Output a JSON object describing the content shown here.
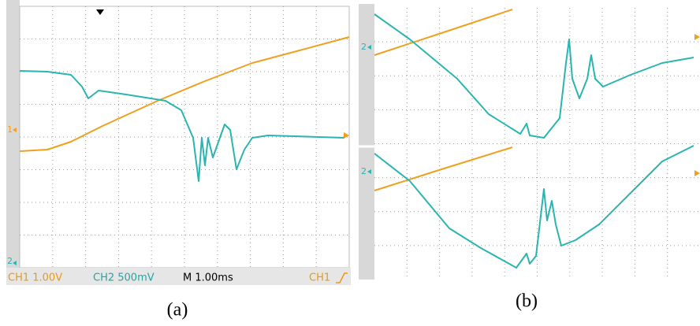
{
  "panel_a": {
    "ch1_marker": "1",
    "ch2_marker": "2",
    "ch1_scale": "CH1 1.00V",
    "ch2_scale": "CH2 500mV",
    "timebase": "M 1.00ms",
    "trigger_source": "CH1",
    "caption": "(a)"
  },
  "panel_b": {
    "top_marker": "2",
    "bottom_marker": "2",
    "caption": "(b)"
  }
}
